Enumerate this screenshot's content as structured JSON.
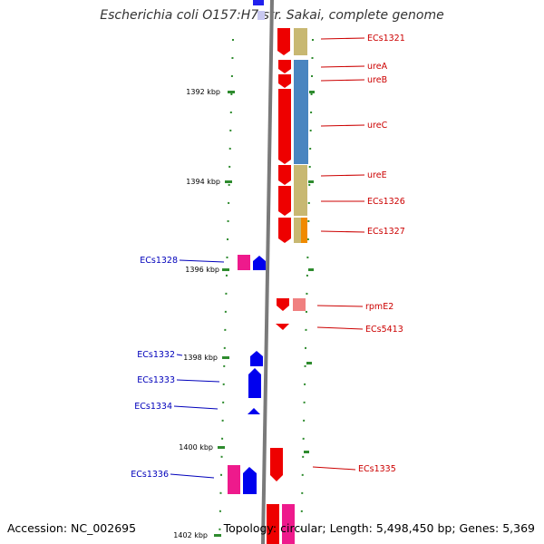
{
  "title": "Escherichia coli O157:H7 str. Sakai, complete genome",
  "footer": {
    "accession": "Accession: NC_002695",
    "summary": "Topology: circular; Length: 5,498,450 bp; Genes: 5,369"
  },
  "ruler": {
    "ticks": [
      "1392 kbp",
      "1394 kbp",
      "1396 kbp",
      "1398 kbp",
      "1400 kbp",
      "1402 kbp"
    ]
  },
  "colors": {
    "forward_cds": "#ee0000",
    "reverse_cds": "#0000ee",
    "pink_feature": "#ee1a8c",
    "khaki_feature": "#c8b872",
    "steelblue_feature": "#4a85c0",
    "orange_feature": "#f08a00",
    "backbone": "#888888",
    "tick": "#2e8b2e"
  },
  "genes_right": [
    {
      "label": "ECs1321"
    },
    {
      "label": "ureA"
    },
    {
      "label": "ureB"
    },
    {
      "label": "ureC"
    },
    {
      "label": "ureE"
    },
    {
      "label": "ECs1326"
    },
    {
      "label": "ECs1327"
    },
    {
      "label": "rpmE2"
    },
    {
      "label": "ECs5413"
    },
    {
      "label": "ECs1335"
    }
  ],
  "genes_left": [
    {
      "label": "ECs1328"
    },
    {
      "label": "ECs1332"
    },
    {
      "label": "ECs1333"
    },
    {
      "label": "ECs1334"
    },
    {
      "label": "ECs1336"
    }
  ]
}
